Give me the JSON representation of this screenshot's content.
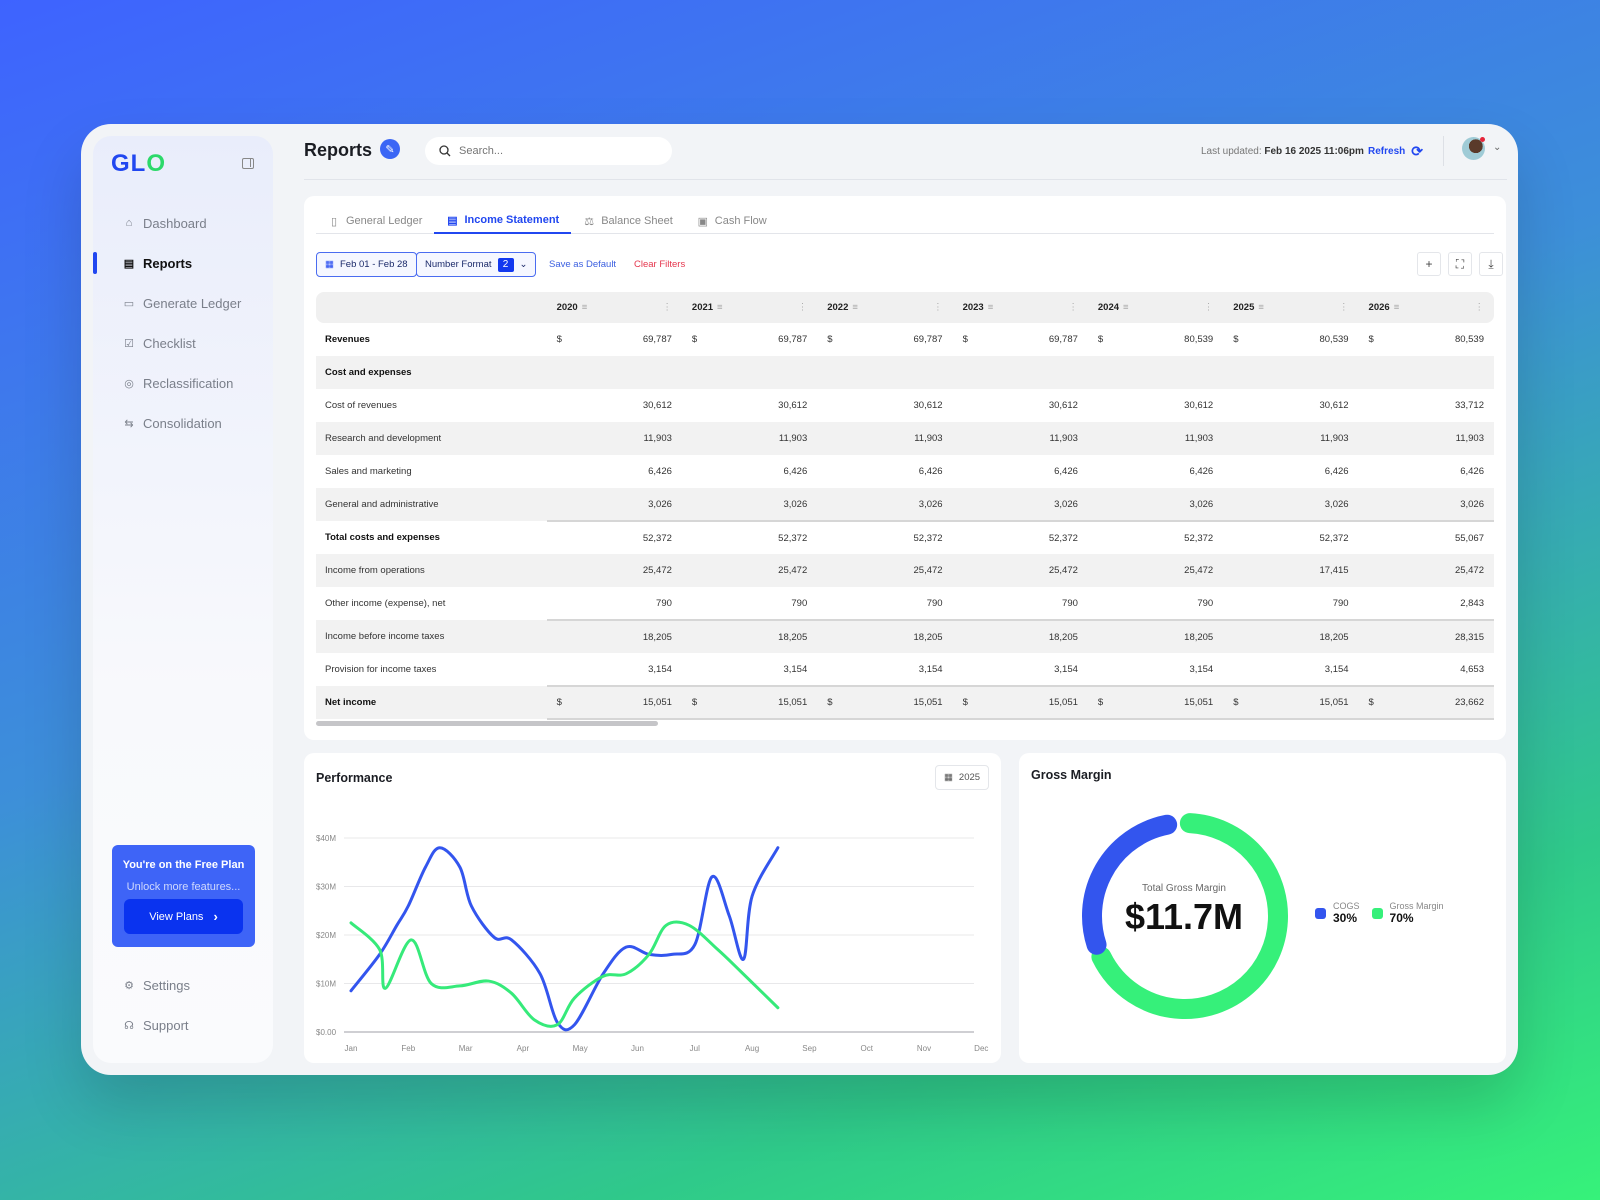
{
  "app": {
    "logo": "GLO"
  },
  "sidebar": {
    "items": [
      {
        "label": "Dashboard",
        "icon": "home-icon"
      },
      {
        "label": "Reports",
        "icon": "document-icon",
        "active": true
      },
      {
        "label": "Generate Ledger",
        "icon": "ledger-icon"
      },
      {
        "label": "Checklist",
        "icon": "checklist-icon"
      },
      {
        "label": "Reclassification",
        "icon": "target-icon"
      },
      {
        "label": "Consolidation",
        "icon": "swap-icon"
      }
    ],
    "plan": {
      "title": "You're on the Free Plan",
      "subtitle": "Unlock more features...",
      "button": "View Plans"
    },
    "bottom": [
      {
        "label": "Settings",
        "icon": "gear-icon"
      },
      {
        "label": "Support",
        "icon": "headphones-icon"
      }
    ]
  },
  "header": {
    "title": "Reports",
    "search_placeholder": "Search...",
    "last_updated_label": "Last updated:",
    "last_updated_value": "Feb 16 2025 11:06pm",
    "refresh": "Refresh"
  },
  "tabs": [
    "General Ledger",
    "Income Statement",
    "Balance Sheet",
    "Cash Flow"
  ],
  "filters": {
    "date_range": "Feb 01 - Feb 28",
    "number_format": "Number Format",
    "number_format_value": "2",
    "save_default": "Save as Default",
    "clear": "Clear Filters"
  },
  "table": {
    "years": [
      "2020",
      "2021",
      "2022",
      "2023",
      "2024",
      "2025",
      "2026"
    ],
    "rows": [
      {
        "label": "Revenues",
        "cur": true,
        "values": [
          "69,787",
          "69,787",
          "69,787",
          "69,787",
          "80,539",
          "80,539",
          "80,539"
        ]
      },
      {
        "label": "Cost and expenses",
        "values": [
          "",
          "",
          "",
          "",
          "",
          "",
          ""
        ]
      },
      {
        "label": "Cost of revenues",
        "values": [
          "30,612",
          "30,612",
          "30,612",
          "30,612",
          "30,612",
          "30,612",
          "33,712"
        ]
      },
      {
        "label": "Research and development",
        "values": [
          "11,903",
          "11,903",
          "11,903",
          "11,903",
          "11,903",
          "11,903",
          "11,903"
        ]
      },
      {
        "label": "Sales and marketing",
        "values": [
          "6,426",
          "6,426",
          "6,426",
          "6,426",
          "6,426",
          "6,426",
          "6,426"
        ]
      },
      {
        "label": "General and administrative",
        "values": [
          "3,026",
          "3,026",
          "3,026",
          "3,026",
          "3,026",
          "3,026",
          "3,026"
        ]
      },
      {
        "label": "Total costs and expenses",
        "values": [
          "52,372",
          "52,372",
          "52,372",
          "52,372",
          "52,372",
          "52,372",
          "55,067"
        ]
      },
      {
        "label": "Income from operations",
        "values": [
          "25,472",
          "25,472",
          "25,472",
          "25,472",
          "25,472",
          "17,415",
          "25,472"
        ]
      },
      {
        "label": "Other income (expense), net",
        "values": [
          "790",
          "790",
          "790",
          "790",
          "790",
          "790",
          "2,843"
        ]
      },
      {
        "label": "Income before income taxes",
        "values": [
          "18,205",
          "18,205",
          "18,205",
          "18,205",
          "18,205",
          "18,205",
          "28,315"
        ]
      },
      {
        "label": "Provision for income taxes",
        "values": [
          "3,154",
          "3,154",
          "3,154",
          "3,154",
          "3,154",
          "3,154",
          "4,653"
        ]
      },
      {
        "label": "Net income",
        "cur": true,
        "values": [
          "15,051",
          "15,051",
          "15,051",
          "15,051",
          "15,051",
          "15,051",
          "23,662"
        ]
      }
    ],
    "currency": "$"
  },
  "performance": {
    "title": "Performance",
    "year": "2025"
  },
  "gross_margin": {
    "title": "Gross Margin",
    "center_label": "Total Gross Margin",
    "center_value": "$11.7M"
  },
  "chart_data": [
    {
      "type": "line",
      "title": "Performance",
      "categories": [
        "Jan",
        "Feb",
        "Mar",
        "Apr",
        "May",
        "Jun",
        "Jul",
        "Aug",
        "Sep",
        "Oct",
        "Nov",
        "Dec"
      ],
      "yticks": [
        "$0.00",
        "$10M",
        "$20M",
        "$30M",
        "$40M"
      ],
      "ylim": [
        0,
        40
      ],
      "grid": true,
      "series": [
        {
          "name": "blue",
          "color": "#3355ee",
          "x": [
            0,
            0.5,
            0.8,
            1,
            1.3,
            1.55,
            1.9,
            2.1,
            2.5,
            2.8,
            3.3,
            3.6,
            3.9,
            4.4,
            4.8,
            5.2,
            5.6,
            6.0,
            6.3,
            6.6,
            6.85,
            7.0,
            7.45
          ],
          "y": [
            8.5,
            16,
            22,
            26,
            34,
            38,
            34,
            26,
            19.5,
            19,
            12,
            2,
            1.5,
            12,
            17.5,
            16,
            16,
            18,
            32,
            24,
            15,
            28,
            38
          ]
        },
        {
          "name": "green",
          "color": "#36ea7a",
          "x": [
            0,
            0.5,
            0.6,
            1.05,
            1.4,
            1.9,
            2.4,
            2.8,
            3.2,
            3.6,
            3.9,
            4.4,
            4.8,
            5.2,
            5.5,
            5.9,
            6.4,
            6.8,
            7.45
          ],
          "y": [
            22.5,
            17,
            9,
            19,
            10,
            9.5,
            10.5,
            8,
            2.5,
            1.5,
            7,
            11.5,
            12,
            16,
            22,
            22,
            17,
            12.5,
            5
          ]
        }
      ]
    },
    {
      "type": "pie",
      "title": "Gross Margin",
      "labels": [
        "COGS",
        "Gross Margin"
      ],
      "values": [
        30,
        70
      ],
      "value_labels": [
        "30%",
        "70%"
      ],
      "colors": [
        "#3355ee",
        "#36f07a"
      ]
    }
  ]
}
